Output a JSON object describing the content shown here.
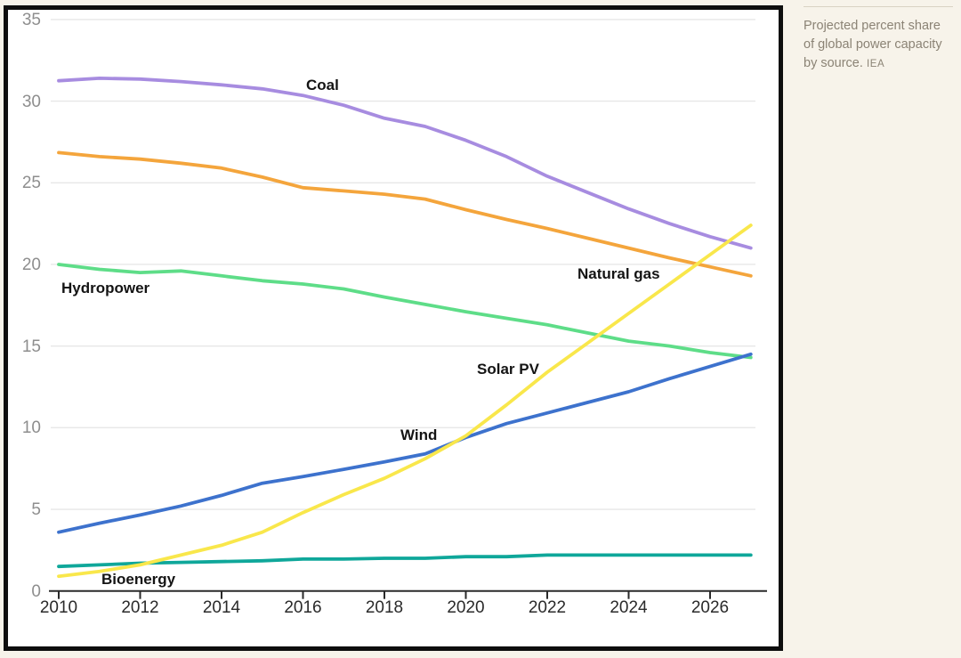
{
  "caption": {
    "text": "Projected percent share of global power capacity by source.",
    "source": "IEA"
  },
  "colors": {
    "page_background": "#f7f3ea",
    "chart_background": "#ffffff",
    "frame_border": "#0e0e0e",
    "gridline": "#e7e7e7",
    "axis_line": "#2a2a2a",
    "y_tick_text": "#8e8e8e",
    "x_tick_text": "#2a2a2a",
    "series_label_text": "#141414",
    "caption_text": "#8b8375"
  },
  "chart_data": {
    "type": "line",
    "title": "",
    "xlabel": "",
    "ylabel": "",
    "ylim": [
      0,
      35
    ],
    "xlim": [
      2010,
      2027
    ],
    "grid": "horizontal",
    "legend": "inline-labels",
    "y_ticks": [
      0,
      5,
      10,
      15,
      20,
      25,
      30,
      35
    ],
    "x_ticks": [
      2010,
      2012,
      2014,
      2016,
      2018,
      2020,
      2022,
      2024,
      2026
    ],
    "x": [
      2010,
      2011,
      2012,
      2013,
      2014,
      2015,
      2016,
      2017,
      2018,
      2019,
      2020,
      2021,
      2022,
      2023,
      2024,
      2025,
      2026,
      2027
    ],
    "series": [
      {
        "name": "Hydropower",
        "label": "Hydropower",
        "color": "#5edd88",
        "values": [
          20.0,
          19.7,
          19.5,
          19.6,
          19.3,
          19.0,
          18.8,
          18.5,
          18.0,
          17.55,
          17.1,
          16.7,
          16.3,
          15.8,
          15.3,
          15.0,
          14.6,
          14.3
        ]
      },
      {
        "name": "Coal",
        "label": "Coal",
        "color": "#a78ce0",
        "values": [
          31.25,
          31.4,
          31.35,
          31.2,
          31.0,
          30.75,
          30.35,
          29.75,
          28.95,
          28.45,
          27.6,
          26.6,
          25.4,
          24.4,
          23.4,
          22.5,
          21.7,
          21.0
        ]
      },
      {
        "name": "Natural gas",
        "label": "Natural gas",
        "color": "#f4a53c",
        "values": [
          26.85,
          26.6,
          26.45,
          26.2,
          25.9,
          25.35,
          24.7,
          24.5,
          24.3,
          24.0,
          23.35,
          22.75,
          22.2,
          21.6,
          21.0,
          20.4,
          19.85,
          19.3
        ]
      },
      {
        "name": "Bioenergy",
        "label": "Bioenergy",
        "color": "#0fa79a",
        "values": [
          1.5,
          1.6,
          1.7,
          1.75,
          1.8,
          1.85,
          1.95,
          1.95,
          2.0,
          2.0,
          2.1,
          2.1,
          2.2,
          2.2,
          2.2,
          2.2,
          2.2,
          2.2
        ]
      },
      {
        "name": "Wind",
        "label": "Wind",
        "color": "#3d72cd",
        "values": [
          3.6,
          4.15,
          4.65,
          5.2,
          5.85,
          6.6,
          7.0,
          7.45,
          7.9,
          8.4,
          9.4,
          10.25,
          10.9,
          11.55,
          12.2,
          13.0,
          13.75,
          14.5
        ]
      },
      {
        "name": "Solar PV",
        "label": "Solar PV",
        "color": "#f9e74b",
        "values": [
          0.9,
          1.2,
          1.6,
          2.2,
          2.8,
          3.6,
          4.8,
          5.9,
          6.9,
          8.1,
          9.5,
          11.4,
          13.4,
          15.2,
          17.0,
          18.8,
          20.6,
          22.4
        ]
      }
    ]
  }
}
